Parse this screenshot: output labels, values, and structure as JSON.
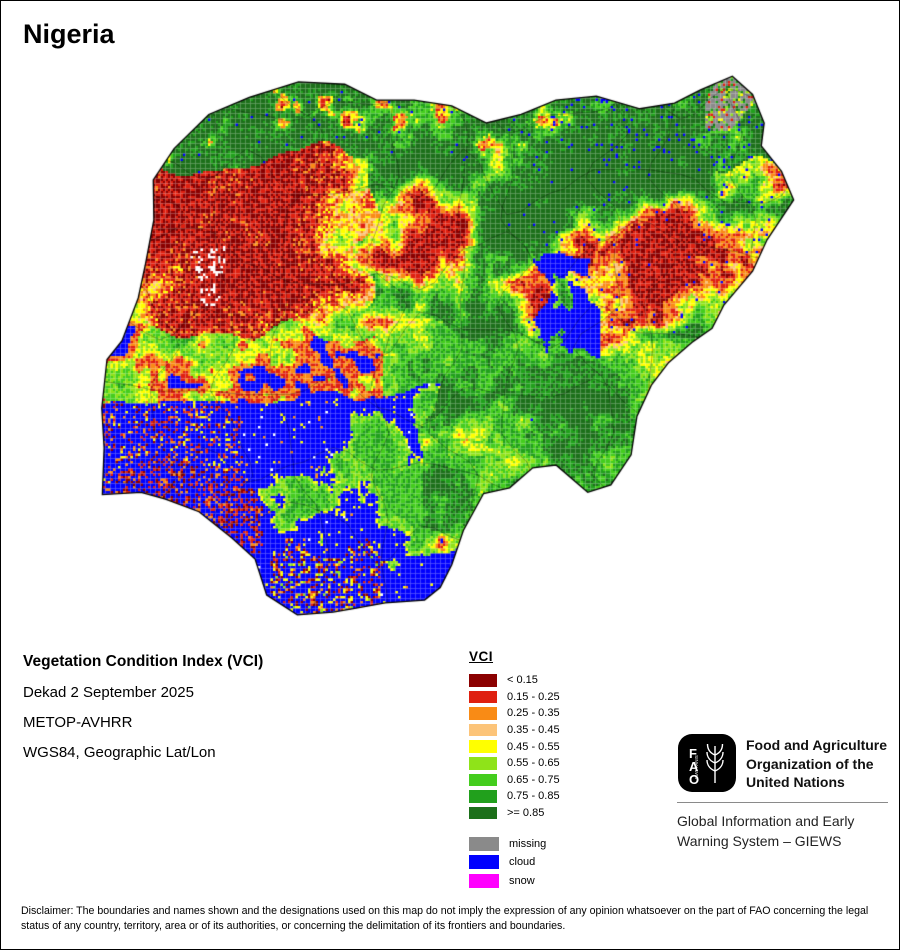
{
  "page": {
    "title": "Nigeria",
    "background": "#ffffff",
    "border_color": "#000000"
  },
  "map": {
    "name": "Nigeria Vegetation Condition Index raster map",
    "outline_color": "#000000"
  },
  "info": {
    "product": "Vegetation Condition Index (VCI)",
    "period": "Dekad 2 September 2025",
    "sensor": "METOP-AVHRR",
    "projection": "WGS84, Geographic Lat/Lon"
  },
  "legend": {
    "title": "VCI",
    "classes": [
      {
        "label": "< 0.15",
        "color": "#8b0000"
      },
      {
        "label": "0.15 - 0.25",
        "color": "#df2010"
      },
      {
        "label": "0.25 - 0.35",
        "color": "#f98b15"
      },
      {
        "label": "0.35 - 0.45",
        "color": "#fcc479"
      },
      {
        "label": "0.45 - 0.55",
        "color": "#ffff00"
      },
      {
        "label": "0.55 - 0.65",
        "color": "#8fe319"
      },
      {
        "label": "0.65 - 0.75",
        "color": "#44cd1e"
      },
      {
        "label": "0.75 - 0.85",
        "color": "#21a01c"
      },
      {
        "label": ">= 0.85",
        "color": "#1c701a"
      }
    ],
    "extras": [
      {
        "label": "missing",
        "color": "#8a8a8a"
      },
      {
        "label": "cloud",
        "color": "#0000fe"
      },
      {
        "label": "snow",
        "color": "#ff00fe"
      }
    ]
  },
  "footer": {
    "fao_letters": [
      "F",
      "A",
      "O"
    ],
    "fao_motto": "FIAT PANIS",
    "fao_name": "Food and Agriculture Organization of the United Nations",
    "giews": "Global Information and Early Warning System – GIEWS"
  },
  "disclaimer": "Disclaimer: The boundaries and names shown and the designations used on this map do not imply the expression of any opinion whatsoever on the part of FAO concerning the legal status of any country, territory, area or of its authorities, or concerning the delimitation of its frontiers and boundaries."
}
